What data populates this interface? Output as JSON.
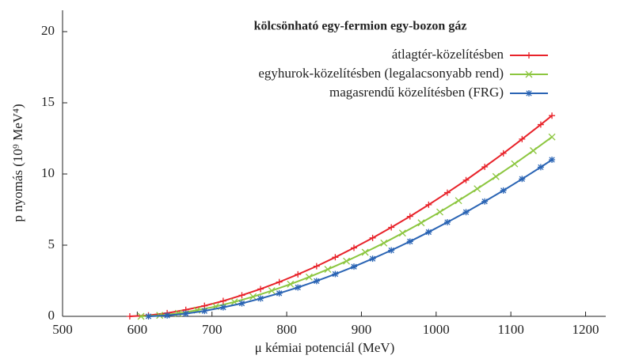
{
  "chart_data": {
    "type": "line",
    "legend_title": "kölcsönható egy-fermion egy-bozon gáz",
    "x_label": "μ kémiai potenciál (MeV)",
    "y_label": "p nyomás (10⁹ MeV⁴)",
    "xlim": [
      500,
      1227
    ],
    "ylim": [
      0,
      21.5
    ],
    "xticks": [
      500,
      600,
      700,
      800,
      900,
      1000,
      1100,
      1200
    ],
    "yticks": [
      0,
      5,
      10,
      15,
      20
    ],
    "legend": "upper-right",
    "series": [
      {
        "name": "átlagtér-közelítésben",
        "color": "#e8232a",
        "marker": "plus",
        "x": [
          590,
          615,
          640,
          665,
          690,
          715,
          740,
          765,
          790,
          815,
          840,
          865,
          890,
          915,
          940,
          965,
          990,
          1015,
          1040,
          1065,
          1090,
          1115,
          1140,
          1155
        ],
        "values": [
          0,
          0.07,
          0.23,
          0.46,
          0.74,
          1.08,
          1.48,
          1.92,
          2.41,
          2.95,
          3.52,
          4.15,
          4.81,
          5.51,
          6.25,
          7.02,
          7.84,
          8.69,
          9.57,
          10.5,
          11.45,
          12.45,
          13.47,
          14.1
        ]
      },
      {
        "name": "egyhurok-közelítésben (legalacsonyabb rend)",
        "color": "#8cc63f",
        "marker": "cross",
        "x": [
          605,
          630,
          655,
          680,
          705,
          730,
          755,
          780,
          805,
          830,
          855,
          880,
          905,
          930,
          955,
          980,
          1005,
          1030,
          1055,
          1080,
          1105,
          1130,
          1155
        ],
        "values": [
          0,
          0.07,
          0.21,
          0.43,
          0.69,
          1.01,
          1.38,
          1.8,
          2.26,
          2.76,
          3.3,
          3.88,
          4.5,
          5.15,
          5.85,
          6.57,
          7.33,
          8.13,
          8.96,
          9.82,
          10.71,
          11.64,
          12.6
        ]
      },
      {
        "name": "magasrendű közelítésben (FRG)",
        "color": "#2a64b4",
        "marker": "star",
        "x": [
          615,
          640,
          665,
          690,
          715,
          740,
          765,
          790,
          815,
          840,
          865,
          890,
          915,
          940,
          965,
          990,
          1015,
          1040,
          1065,
          1090,
          1115,
          1140,
          1155
        ],
        "values": [
          0,
          0.06,
          0.19,
          0.38,
          0.63,
          0.91,
          1.25,
          1.62,
          2.03,
          2.48,
          2.97,
          3.49,
          4.05,
          4.64,
          5.26,
          5.92,
          6.61,
          7.32,
          8.07,
          8.84,
          9.65,
          10.48,
          11.0
        ]
      }
    ]
  }
}
